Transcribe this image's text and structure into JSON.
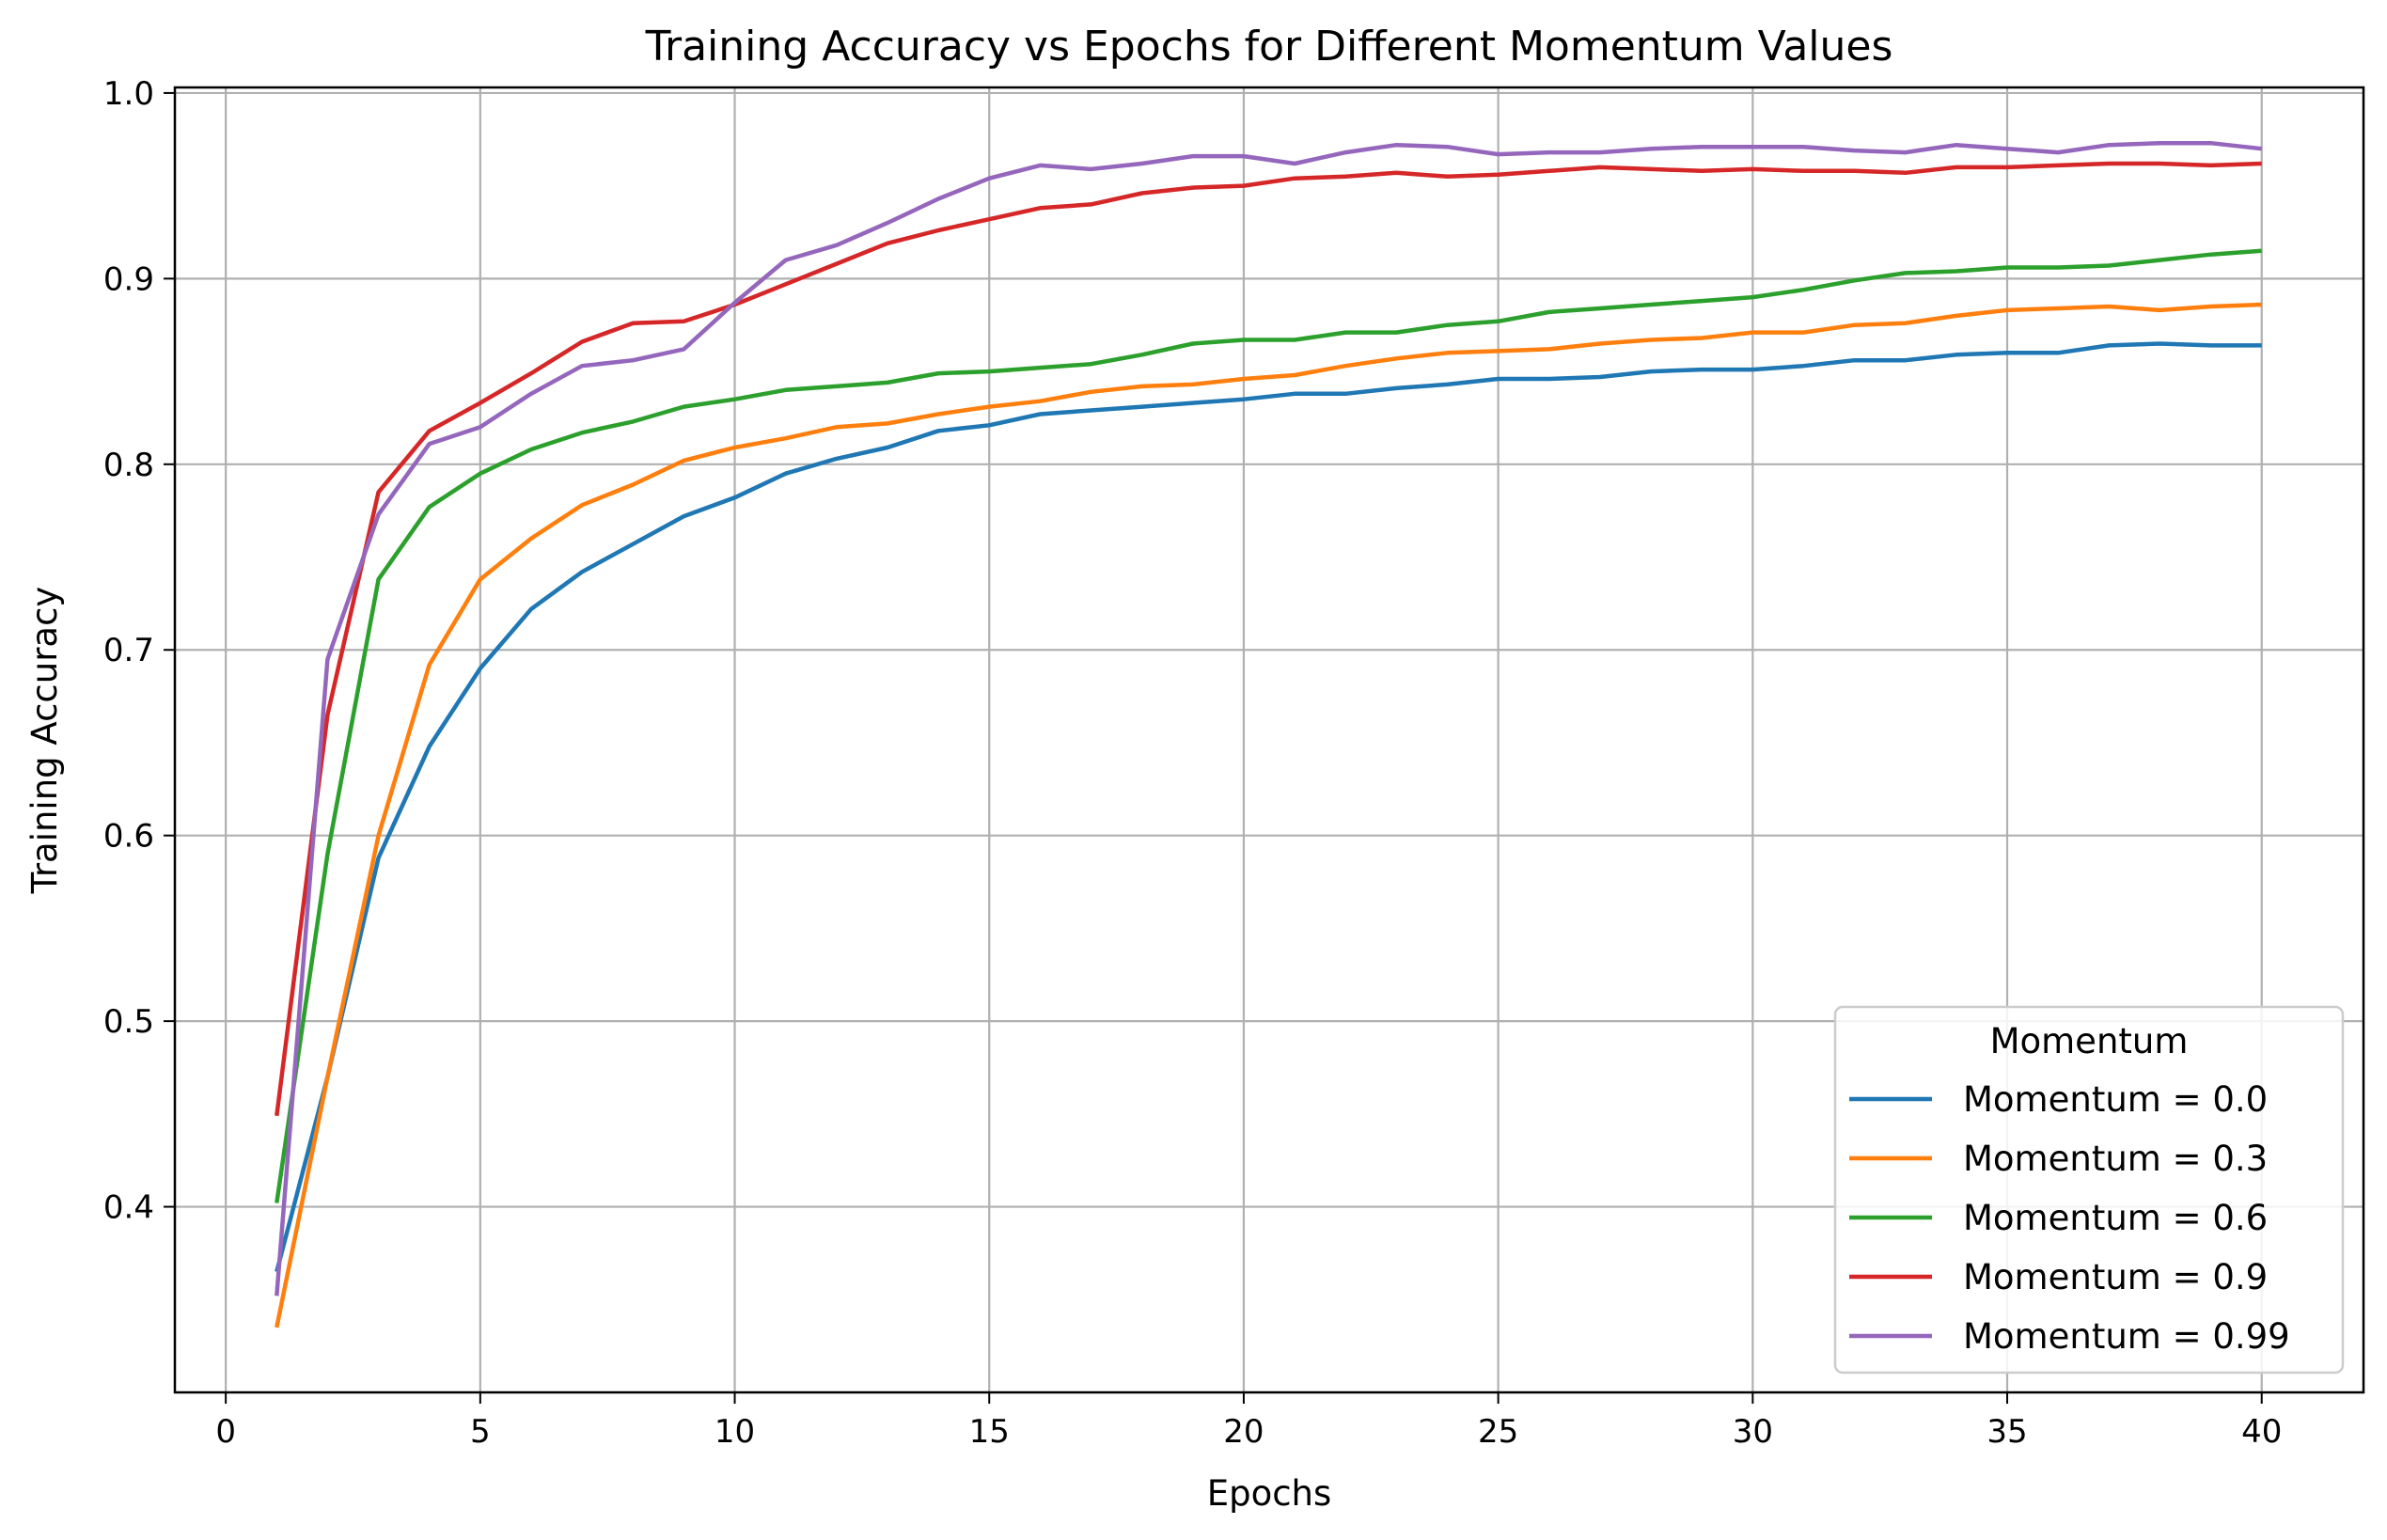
{
  "chart_data": {
    "type": "line",
    "title": "Training Accuracy vs Epochs for Different Momentum Values",
    "xlabel": "Epochs",
    "ylabel": "Training Accuracy",
    "xlim": [
      -1,
      42
    ],
    "ylim": [
      0.3,
      1.003
    ],
    "xticks": [
      0,
      5,
      10,
      15,
      20,
      25,
      30,
      35,
      40
    ],
    "yticks": [
      0.4,
      0.5,
      0.6,
      0.7,
      0.8,
      0.9,
      1.0
    ],
    "grid": true,
    "legend": {
      "title": "Momentum",
      "position": "lower-right"
    },
    "x": [
      1,
      2,
      3,
      4,
      5,
      6,
      7,
      8,
      9,
      10,
      11,
      12,
      13,
      14,
      15,
      16,
      17,
      18,
      19,
      20,
      21,
      22,
      23,
      24,
      25,
      26,
      27,
      28,
      29,
      30,
      31,
      32,
      33,
      34,
      35,
      36,
      37,
      38,
      39,
      40
    ],
    "series": [
      {
        "name": "Momentum = 0.0",
        "color": "#1f77b4",
        "values": [
          0.365,
          0.47,
          0.588,
          0.648,
          0.69,
          0.722,
          0.742,
          0.757,
          0.772,
          0.782,
          0.795,
          0.803,
          0.809,
          0.818,
          0.821,
          0.827,
          0.829,
          0.831,
          0.833,
          0.835,
          0.838,
          0.838,
          0.841,
          0.843,
          0.846,
          0.846,
          0.847,
          0.85,
          0.851,
          0.851,
          0.853,
          0.856,
          0.856,
          0.859,
          0.86,
          0.86,
          0.864,
          0.865,
          0.864,
          0.864
        ]
      },
      {
        "name": "Momentum = 0.3",
        "color": "#ff7f0e",
        "values": [
          0.335,
          0.47,
          0.6,
          0.692,
          0.738,
          0.76,
          0.778,
          0.789,
          0.802,
          0.809,
          0.814,
          0.82,
          0.822,
          0.827,
          0.831,
          0.834,
          0.839,
          0.842,
          0.843,
          0.846,
          0.848,
          0.853,
          0.857,
          0.86,
          0.861,
          0.862,
          0.865,
          0.867,
          0.868,
          0.871,
          0.871,
          0.875,
          0.876,
          0.88,
          0.883,
          0.884,
          0.885,
          0.883,
          0.885,
          0.886
        ]
      },
      {
        "name": "Momentum = 0.6",
        "color": "#2ca02c",
        "values": [
          0.402,
          0.59,
          0.738,
          0.777,
          0.795,
          0.808,
          0.817,
          0.823,
          0.831,
          0.835,
          0.84,
          0.842,
          0.844,
          0.849,
          0.85,
          0.852,
          0.854,
          0.859,
          0.865,
          0.867,
          0.867,
          0.871,
          0.871,
          0.875,
          0.877,
          0.882,
          0.884,
          0.886,
          0.888,
          0.89,
          0.894,
          0.899,
          0.903,
          0.904,
          0.906,
          0.906,
          0.907,
          0.91,
          0.913,
          0.915
        ]
      },
      {
        "name": "Momentum = 0.9",
        "color": "#d62728",
        "values": [
          0.449,
          0.665,
          0.785,
          0.818,
          0.833,
          0.849,
          0.866,
          0.876,
          0.877,
          0.886,
          0.897,
          0.908,
          0.919,
          0.926,
          0.932,
          0.938,
          0.94,
          0.946,
          0.949,
          0.95,
          0.954,
          0.955,
          0.957,
          0.955,
          0.956,
          0.958,
          0.96,
          0.959,
          0.958,
          0.959,
          0.958,
          0.958,
          0.957,
          0.96,
          0.96,
          0.961,
          0.962,
          0.962,
          0.961,
          0.962
        ]
      },
      {
        "name": "Momentum = 0.99",
        "color": "#9467bd",
        "values": [
          0.352,
          0.695,
          0.773,
          0.811,
          0.82,
          0.838,
          0.853,
          0.856,
          0.862,
          0.887,
          0.91,
          0.918,
          0.93,
          0.943,
          0.954,
          0.961,
          0.959,
          0.962,
          0.966,
          0.966,
          0.962,
          0.968,
          0.972,
          0.971,
          0.967,
          0.968,
          0.968,
          0.97,
          0.971,
          0.971,
          0.971,
          0.969,
          0.968,
          0.972,
          0.97,
          0.968,
          0.972,
          0.973,
          0.973,
          0.97
        ]
      }
    ]
  }
}
